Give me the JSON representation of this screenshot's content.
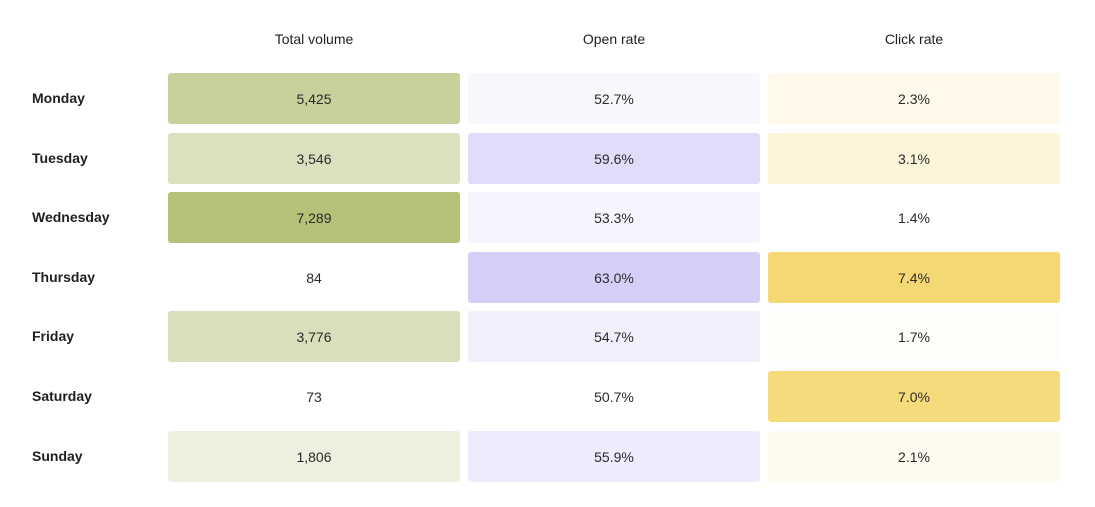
{
  "chart_data": {
    "type": "heatmap",
    "columns": [
      "Total volume",
      "Open rate",
      "Click rate"
    ],
    "rows": [
      "Monday",
      "Tuesday",
      "Wednesday",
      "Thursday",
      "Friday",
      "Saturday",
      "Sunday"
    ],
    "values": [
      [
        "5,425",
        "52.7%",
        "2.3%"
      ],
      [
        "3,546",
        "59.6%",
        "3.1%"
      ],
      [
        "7,289",
        "53.3%",
        "1.4%"
      ],
      [
        "84",
        "63.0%",
        "7.4%"
      ],
      [
        "3,776",
        "54.7%",
        "1.7%"
      ],
      [
        "73",
        "50.7%",
        "7.0%"
      ],
      [
        "1,806",
        "55.9%",
        "2.1%"
      ]
    ],
    "numeric_values": {
      "Total volume": [
        5425,
        3546,
        7289,
        84,
        3776,
        73,
        1806
      ],
      "Open rate": [
        52.7,
        59.6,
        53.3,
        63.0,
        54.7,
        50.7,
        55.9
      ],
      "Click rate": [
        2.3,
        3.1,
        1.4,
        7.4,
        1.7,
        7.0,
        2.1
      ]
    },
    "column_colors": [
      "#b5c078",
      "#d5cff7",
      "#f5d874"
    ],
    "text_color": "#1f1f1f"
  }
}
